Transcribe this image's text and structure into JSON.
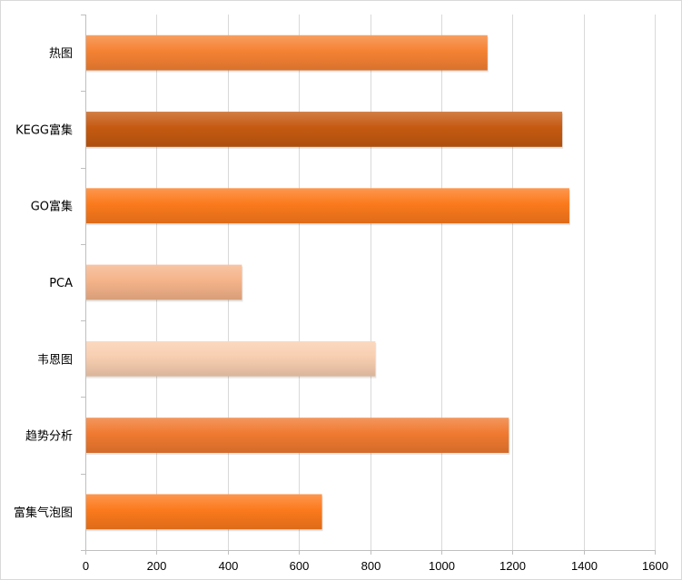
{
  "chart_data": {
    "type": "bar",
    "orientation": "horizontal",
    "title": "",
    "xlabel": "",
    "ylabel": "",
    "categories": [
      "热图",
      "KEGG富集",
      "GO富集",
      "PCA",
      "韦恩图",
      "趋势分析",
      "富集气泡图"
    ],
    "values": [
      1130,
      1340,
      1360,
      440,
      815,
      1190,
      665
    ],
    "bar_colors": [
      "#f58233",
      "#c55a11",
      "#fb7a1c",
      "#f5b48a",
      "#f8ceb0",
      "#f07a30",
      "#fb7a1c"
    ],
    "xlim": [
      0,
      1600
    ],
    "xticks": [
      0,
      200,
      400,
      600,
      800,
      1000,
      1200,
      1400,
      1600
    ],
    "grid": true,
    "legend": "none"
  }
}
